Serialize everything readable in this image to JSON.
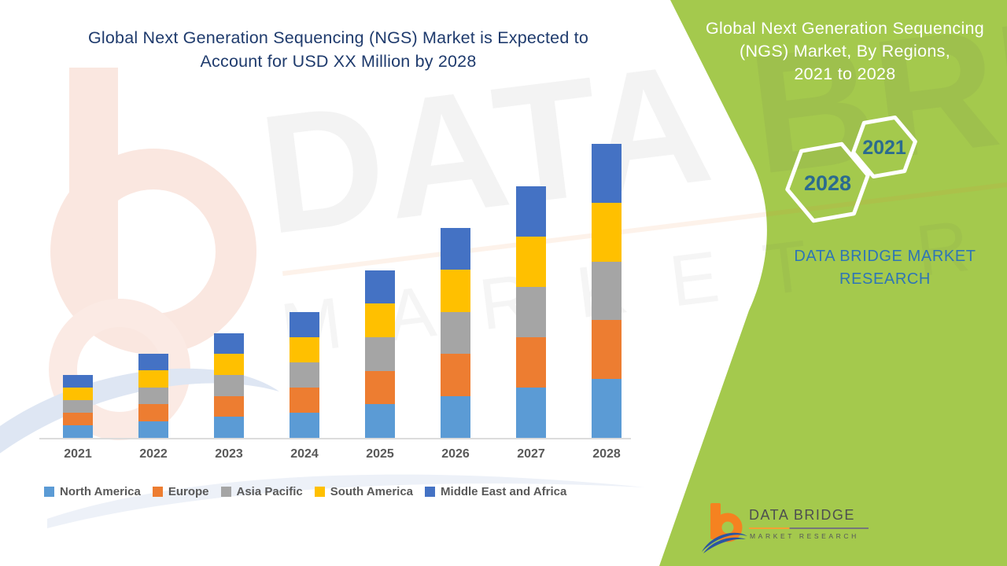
{
  "chart": {
    "title_line1": "Global Next Generation Sequencing (NGS) Market is Expected to",
    "title_line2": "Account for USD XX Million by 2028",
    "title_color": "#1F3B6D"
  },
  "chart_data": {
    "type": "bar",
    "stacked": true,
    "title": "Global Next Generation Sequencing (NGS) Market is Expected to Account for USD XX Million by 2028",
    "categories": [
      "2021",
      "2022",
      "2023",
      "2024",
      "2025",
      "2026",
      "2027",
      "2028"
    ],
    "series": [
      {
        "name": "North America",
        "color": "#5B9BD5",
        "values": [
          0.3,
          0.4,
          0.5,
          0.6,
          0.8,
          1.0,
          1.2,
          1.4
        ]
      },
      {
        "name": "Europe",
        "color": "#ED7D31",
        "values": [
          0.3,
          0.4,
          0.5,
          0.6,
          0.8,
          1.0,
          1.2,
          1.4
        ]
      },
      {
        "name": "Asia Pacific",
        "color": "#A5A5A5",
        "values": [
          0.3,
          0.4,
          0.5,
          0.6,
          0.8,
          1.0,
          1.2,
          1.4
        ]
      },
      {
        "name": "South America",
        "color": "#FFC000",
        "values": [
          0.3,
          0.4,
          0.5,
          0.6,
          0.8,
          1.0,
          1.2,
          1.4
        ]
      },
      {
        "name": "Middle East and Africa",
        "color": "#4472C4",
        "values": [
          0.3,
          0.4,
          0.5,
          0.6,
          0.8,
          1.0,
          1.2,
          1.4
        ]
      }
    ],
    "stack_totals": [
      1.5,
      2.0,
      2.5,
      3.0,
      4.0,
      5.0,
      6.0,
      7.0
    ],
    "units": "relative height; value axis not shown (USD XX Million)",
    "xlabel": "",
    "ylabel": "",
    "ylim": [
      0,
      7.14
    ],
    "grid": false,
    "value_axis_hidden": true,
    "legend_position": "bottom"
  },
  "side_panel": {
    "background": "#A4C94D",
    "title_line1": "Global Next Generation Sequencing",
    "title_line2": "(NGS) Market, By Regions,",
    "title_line3": "2021 to 2028",
    "hexagon_2021": "2021",
    "hexagon_2028": "2028",
    "brand_line1": "DATA BRIDGE MARKET",
    "brand_line2": "RESEARCH"
  },
  "footer_logo": {
    "name": "DATA BRIDGE",
    "subtitle": "MARKET RESEARCH"
  },
  "watermark": {
    "line1": "DATA BRIDGE",
    "line2": "MARKET RESEARCH"
  },
  "colors": {
    "green_panel": "#A4C94D",
    "chart_title": "#1F3B6D",
    "hexagon_year_text": "#2B6B8F",
    "brand_text_blue": "#2E75B6",
    "axis_text": "#595959",
    "axis_line": "#DCDCDC",
    "logo_orange": "#F58220",
    "logo_blue": "#2B55A2"
  }
}
